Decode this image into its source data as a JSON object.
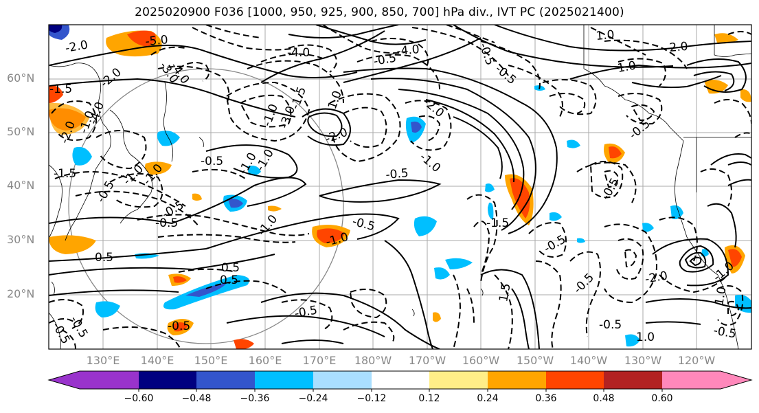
{
  "title": "2025020900 F036 [1000, 950, 925, 900, 850, 700] hPa div., IVT PC (2025021400)",
  "map": {
    "latitude_labels": [
      "60°N",
      "50°N",
      "40°N",
      "30°N",
      "20°N"
    ],
    "longitude_labels": [
      "130°E",
      "140°E",
      "150°E",
      "160°E",
      "170°E",
      "180°W",
      "170°W",
      "160°W",
      "150°W",
      "140°W",
      "130°W",
      "120°W"
    ],
    "contour_labels": [
      {
        "text": "-2.0"
      },
      {
        "text": "-5.0"
      },
      {
        "text": "-3.0"
      },
      {
        "text": "-4.0"
      },
      {
        "text": "-1.5"
      },
      {
        "text": "-2.0"
      },
      {
        "text": "-1.0"
      },
      {
        "text": "-4.0"
      },
      {
        "text": "-2.0"
      },
      {
        "text": "-1.0"
      },
      {
        "text": "-1.5"
      },
      {
        "text": "-1.0"
      },
      {
        "text": "-0.5"
      },
      {
        "text": "-0.5"
      },
      {
        "text": "-0.5"
      },
      {
        "text": "0.5"
      },
      {
        "text": "-0.5"
      },
      {
        "text": "-1.0"
      },
      {
        "text": "-0.5"
      },
      {
        "text": "-0.5"
      },
      {
        "text": "0.5"
      },
      {
        "text": "0.5"
      },
      {
        "text": "-1.0"
      },
      {
        "text": "-0.5"
      },
      {
        "text": "-0.5"
      },
      {
        "text": "-1.0"
      },
      {
        "text": "-1.0"
      },
      {
        "text": "-0.5"
      },
      {
        "text": "-0.5"
      },
      {
        "text": "-4.0"
      },
      {
        "text": "-1.0"
      },
      {
        "text": "-3.0"
      },
      {
        "text": "-2.0"
      },
      {
        "text": "-4.0"
      },
      {
        "text": "-0.5"
      },
      {
        "text": "-1.5"
      },
      {
        "text": "-0.5"
      },
      {
        "text": "1.0"
      },
      {
        "text": "-2.0"
      },
      {
        "text": "-1.0"
      },
      {
        "text": "-0.5"
      },
      {
        "text": "-1.5"
      },
      {
        "text": "-0.5"
      },
      {
        "text": "1.0"
      },
      {
        "text": "1.0"
      },
      {
        "text": "2.0"
      },
      {
        "text": "-0.5"
      },
      {
        "text": "-0.5"
      },
      {
        "text": "-0.5"
      },
      {
        "text": "-2.0"
      },
      {
        "text": "-1.0"
      },
      {
        "text": "-0.5"
      },
      {
        "text": "1.0"
      },
      {
        "text": "-0.5"
      },
      {
        "text": "1.0"
      },
      {
        "text": "1.5"
      }
    ]
  },
  "colorbar": {
    "colors": [
      "#9933cc",
      "#000080",
      "#3355cc",
      "#00bfff",
      "#aadfff",
      "#ffffff",
      "#ffee88",
      "#ffa500",
      "#ff4500",
      "#b22222",
      "#ff88bb"
    ],
    "tick_labels": [
      "−0.60",
      "−0.48",
      "−0.36",
      "−0.24",
      "−0.12",
      "0.12",
      "0.24",
      "0.36",
      "0.48",
      "0.60"
    ]
  }
}
